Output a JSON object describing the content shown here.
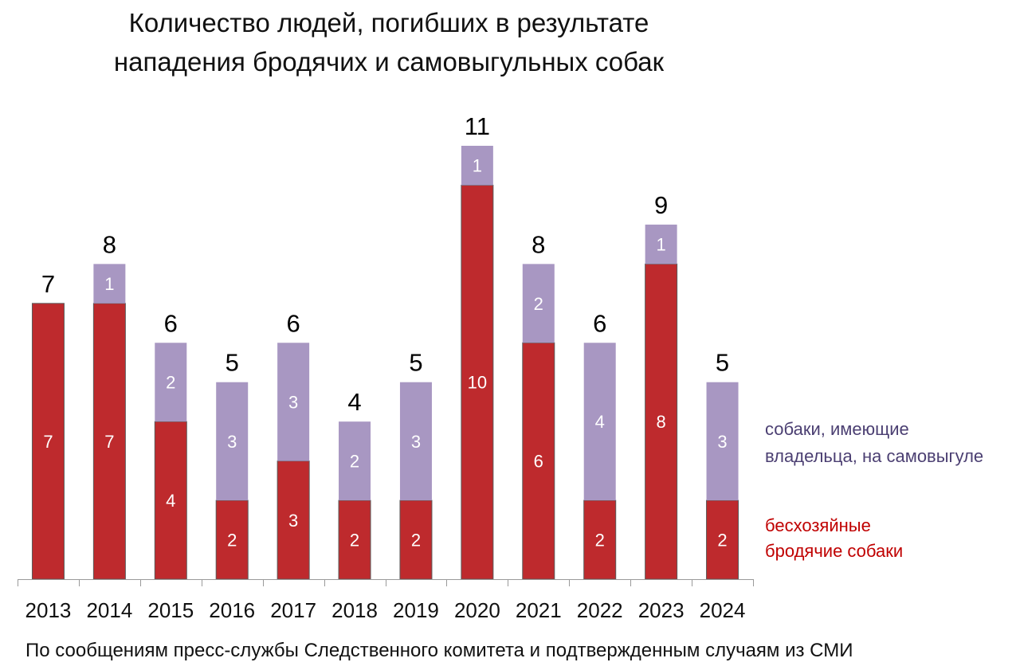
{
  "chart_data": {
    "type": "bar",
    "stacked": true,
    "title": [
      "Количество людей, погибших в результате",
      "нападения бродячих и самовыгульных собак"
    ],
    "xlabel": "",
    "ylabel": "",
    "ylim": [
      0,
      11
    ],
    "grid": false,
    "categories": [
      "2013",
      "2014",
      "2015",
      "2016",
      "2017",
      "2018",
      "2019",
      "2020",
      "2021",
      "2022",
      "2023",
      "2024"
    ],
    "series": [
      {
        "name": "бесхозяйные бродячие собаки",
        "legend_lines": [
          "бесхозяйные",
          "бродячие собаки"
        ],
        "color": "#BE2A2D",
        "legend_color": "#C00000",
        "values": [
          7,
          7,
          4,
          2,
          3,
          2,
          2,
          10,
          6,
          2,
          8,
          2
        ]
      },
      {
        "name": "собаки, имеющие владельца, на самовыгуле",
        "legend_lines": [
          "собаки, имеющие",
          "владельца, на самовыгуле"
        ],
        "color": "#A897C2",
        "legend_color": "#4B3F72",
        "values": [
          0,
          1,
          2,
          3,
          3,
          2,
          3,
          1,
          2,
          4,
          1,
          3
        ]
      }
    ],
    "totals": [
      7,
      8,
      6,
      5,
      6,
      4,
      5,
      11,
      8,
      6,
      9,
      5
    ],
    "legend_position": "right",
    "source": "По сообщениям пресс-службы Следственного комитета и подтвержденным случаям из СМИ"
  }
}
